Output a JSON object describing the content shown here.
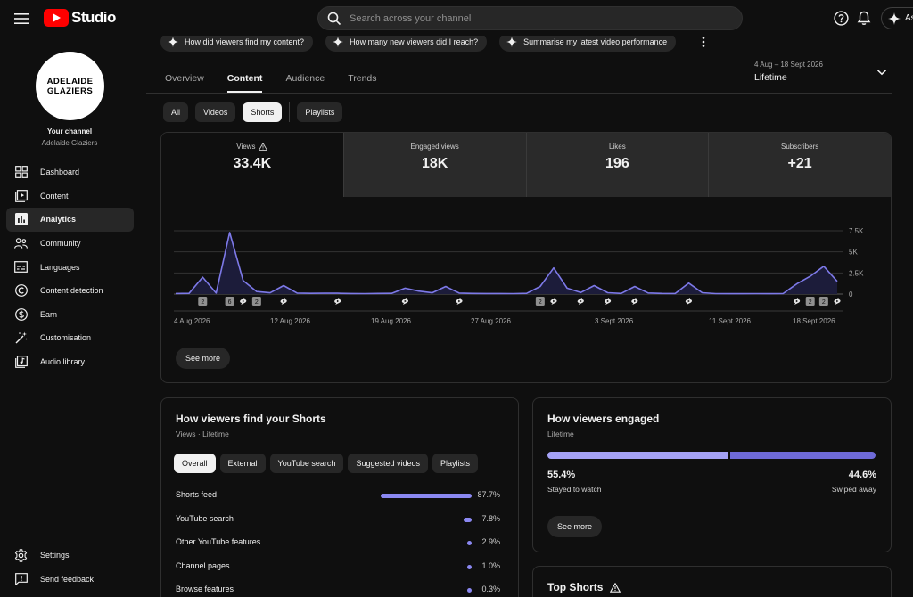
{
  "header": {
    "logo_text": "Studio",
    "search_placeholder": "Search across your channel",
    "ask_label": "As"
  },
  "sidebar": {
    "avatar_line1": "ADELAIDE",
    "avatar_line2": "GLAZIERS",
    "channel_label": "Your channel",
    "channel_name": "Adelaide Glaziers",
    "items": [
      {
        "label": "Dashboard",
        "icon": "dashboard-icon"
      },
      {
        "label": "Content",
        "icon": "content-icon"
      },
      {
        "label": "Analytics",
        "icon": "analytics-icon",
        "active": true
      },
      {
        "label": "Community",
        "icon": "community-icon"
      },
      {
        "label": "Languages",
        "icon": "languages-icon"
      },
      {
        "label": "Content detection",
        "icon": "content-detection-icon"
      },
      {
        "label": "Earn",
        "icon": "earn-icon"
      },
      {
        "label": "Customisation",
        "icon": "customisation-icon"
      },
      {
        "label": "Audio library",
        "icon": "audio-library-icon"
      }
    ],
    "bottom_items": [
      {
        "label": "Settings",
        "icon": "settings-icon"
      },
      {
        "label": "Send feedback",
        "icon": "feedback-icon"
      }
    ]
  },
  "ai_chips": [
    "How did viewers find my content?",
    "How many new viewers did I reach?",
    "Summarise my latest video performance"
  ],
  "tabs": [
    "Overview",
    "Content",
    "Audience",
    "Trends"
  ],
  "active_tab": "Content",
  "date_range": {
    "sub": "4 Aug – 18 Sept 2026",
    "label": "Lifetime"
  },
  "filters": [
    "All",
    "Videos",
    "Shorts",
    "Playlists"
  ],
  "selected_filter": "Shorts",
  "metrics": [
    {
      "label": "Views",
      "value": "33.4K",
      "warning": true
    },
    {
      "label": "Engaged views",
      "value": "18K"
    },
    {
      "label": "Likes",
      "value": "196"
    },
    {
      "label": "Subscribers",
      "value": "+21"
    }
  ],
  "chart_data": {
    "type": "line",
    "title": "",
    "y_ticks": [
      "0",
      "2.5K",
      "5K",
      "7.5K"
    ],
    "ylim": [
      0,
      7500
    ],
    "x_tick_labels": [
      "4 Aug 2026",
      "12 Aug 2026",
      "19 Aug 2026",
      "27 Aug 2026",
      "3 Sept 2026",
      "11 Sept 2026",
      "18 Sept 2026"
    ],
    "series": [
      {
        "values": [
          60,
          80,
          2000,
          120,
          7300,
          1600,
          300,
          150,
          1000,
          120,
          80,
          100,
          90,
          60,
          50,
          70,
          80,
          700,
          350,
          150,
          900,
          120,
          70,
          60,
          60,
          50,
          80,
          900,
          3100,
          700,
          180,
          1000,
          160,
          70,
          900,
          130,
          70,
          60,
          1300,
          160,
          50,
          40,
          40,
          50,
          40,
          60,
          1200,
          2100,
          3300,
          1500
        ]
      }
    ],
    "markers": [
      {
        "index": 2,
        "label": "2"
      },
      {
        "index": 4,
        "label": "6"
      },
      {
        "index": 5,
        "label": "shorts"
      },
      {
        "index": 6,
        "label": "2"
      },
      {
        "index": 8,
        "label": "shorts"
      },
      {
        "index": 12,
        "label": "shorts"
      },
      {
        "index": 17,
        "label": "shorts"
      },
      {
        "index": 21,
        "label": "shorts"
      },
      {
        "index": 27,
        "label": "2"
      },
      {
        "index": 28,
        "label": "shorts"
      },
      {
        "index": 30,
        "label": "shorts"
      },
      {
        "index": 32,
        "label": "shorts"
      },
      {
        "index": 34,
        "label": "shorts"
      },
      {
        "index": 38,
        "label": "shorts"
      },
      {
        "index": 46,
        "label": "shorts"
      },
      {
        "index": 47,
        "label": "2"
      },
      {
        "index": 48,
        "label": "2"
      },
      {
        "index": 49,
        "label": "shorts"
      }
    ],
    "grid": true
  },
  "views_card": {
    "see_more": "See more"
  },
  "find_card": {
    "title": "How viewers find your Shorts",
    "subtitle": "Views · Lifetime",
    "chips": [
      "Overall",
      "External",
      "YouTube search",
      "Suggested videos",
      "Playlists"
    ],
    "selected_chip": "Overall",
    "rows": [
      {
        "name": "Shorts feed",
        "pct": "87.7%",
        "value": 87.7
      },
      {
        "name": "YouTube search",
        "pct": "7.8%",
        "value": 7.8
      },
      {
        "name": "Other YouTube features",
        "pct": "2.9%",
        "value": 2.9
      },
      {
        "name": "Channel pages",
        "pct": "1.0%",
        "value": 1.0
      },
      {
        "name": "Browse features",
        "pct": "0.3%",
        "value": 0.3
      }
    ]
  },
  "engaged_card": {
    "title": "How viewers engaged",
    "subtitle": "Lifetime",
    "stayed_pct": "55.4%",
    "stayed_label": "Stayed to watch",
    "stayed_value": 55.4,
    "swiped_pct": "44.6%",
    "swiped_label": "Swiped away",
    "see_more": "See more"
  },
  "top_shorts_card": {
    "title": "Top Shorts"
  },
  "colors": {
    "accent": "#8b88f2",
    "line": "#7d79e8",
    "fill": "#1c1c3a",
    "red": "#ff0000"
  }
}
